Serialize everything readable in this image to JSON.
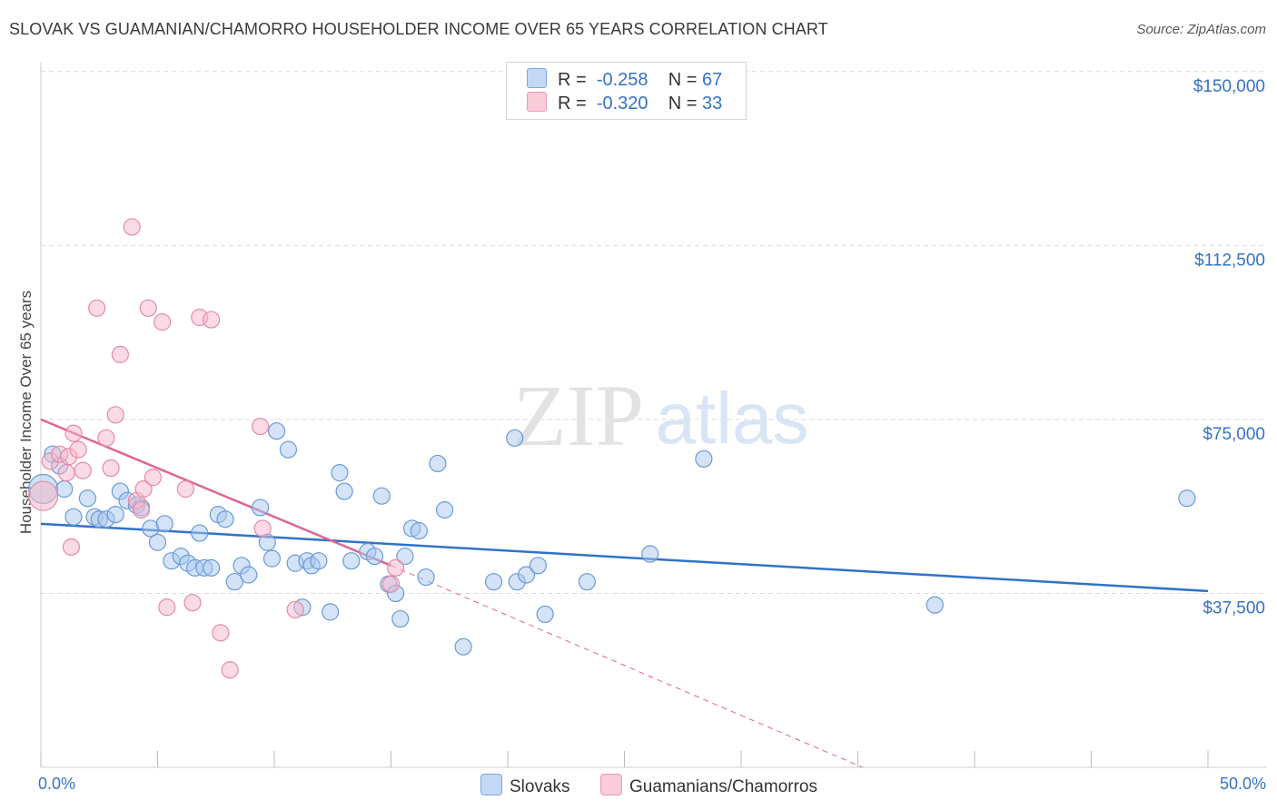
{
  "header": {
    "title": "SLOVAK VS GUAMANIAN/CHAMORRO HOUSEHOLDER INCOME OVER 65 YEARS CORRELATION CHART",
    "source": "Source: ZipAtlas.com"
  },
  "watermark": {
    "zip": "ZIP",
    "atlas": "atlas"
  },
  "legend": {
    "rows": [
      {
        "r_label": "R =",
        "r_value": "-0.258",
        "n_label": "N =",
        "n_value": "67"
      },
      {
        "r_label": "R =",
        "r_value": "-0.320",
        "n_label": "N =",
        "n_value": "33"
      }
    ]
  },
  "colors": {
    "slovak_fill": "#a9c8ef",
    "slovak_stroke": "#6a9ad6",
    "slovak_line": "#2f72c9",
    "guam_fill": "#f5b8cb",
    "guam_stroke": "#e48aa6",
    "guam_line": "#e0648e",
    "tick_label": "#3572c6",
    "grid": "#dcdcdc"
  },
  "chart_data": {
    "type": "scatter",
    "title": "SLOVAK VS GUAMANIAN/CHAMORRO HOUSEHOLDER INCOME OVER 65 YEARS CORRELATION CHART",
    "xlabel": "",
    "ylabel": "Householder Income Over 65 years",
    "xlim": [
      0,
      50
    ],
    "ylim": [
      0,
      157500
    ],
    "x_tick_labels": [
      "0.0%",
      "50.0%"
    ],
    "y_ticks": [
      37500,
      75000,
      112500,
      150000
    ],
    "y_tick_labels": [
      "$37,500",
      "$75,000",
      "$112,500",
      "$150,000"
    ],
    "grid": true,
    "legend_position": "top-center",
    "series": [
      {
        "name": "Slovaks",
        "r": -0.258,
        "n": 67,
        "trend": {
          "x": [
            0,
            50
          ],
          "y": [
            52500,
            38000
          ]
        },
        "points": [
          [
            0.1,
            60000
          ],
          [
            0.5,
            67500
          ],
          [
            0.8,
            65000
          ],
          [
            1.0,
            60000
          ],
          [
            1.4,
            54000
          ],
          [
            2.0,
            58000
          ],
          [
            2.3,
            54000
          ],
          [
            2.5,
            53500
          ],
          [
            2.8,
            53500
          ],
          [
            3.2,
            54500
          ],
          [
            3.4,
            59500
          ],
          [
            3.7,
            57500
          ],
          [
            4.1,
            56500
          ],
          [
            4.3,
            56000
          ],
          [
            4.7,
            51500
          ],
          [
            5.0,
            48500
          ],
          [
            5.3,
            52500
          ],
          [
            5.6,
            44500
          ],
          [
            6.0,
            45500
          ],
          [
            6.3,
            44000
          ],
          [
            6.6,
            43000
          ],
          [
            6.8,
            50500
          ],
          [
            7.0,
            43000
          ],
          [
            7.3,
            43000
          ],
          [
            7.6,
            54500
          ],
          [
            7.9,
            53500
          ],
          [
            8.3,
            40000
          ],
          [
            8.6,
            43500
          ],
          [
            8.9,
            41500
          ],
          [
            9.4,
            56000
          ],
          [
            9.7,
            48500
          ],
          [
            9.9,
            45000
          ],
          [
            10.1,
            72500
          ],
          [
            10.6,
            68500
          ],
          [
            10.9,
            44000
          ],
          [
            11.2,
            34500
          ],
          [
            11.4,
            44500
          ],
          [
            11.6,
            43500
          ],
          [
            11.9,
            44500
          ],
          [
            12.4,
            33500
          ],
          [
            12.8,
            63500
          ],
          [
            13.0,
            59500
          ],
          [
            13.3,
            44500
          ],
          [
            14.0,
            46500
          ],
          [
            14.3,
            45500
          ],
          [
            14.6,
            58500
          ],
          [
            14.9,
            39500
          ],
          [
            15.2,
            37500
          ],
          [
            15.4,
            32000
          ],
          [
            15.6,
            45500
          ],
          [
            15.9,
            51500
          ],
          [
            16.2,
            51000
          ],
          [
            16.5,
            41000
          ],
          [
            17.0,
            65500
          ],
          [
            17.3,
            55500
          ],
          [
            18.1,
            26000
          ],
          [
            19.4,
            40000
          ],
          [
            20.3,
            71000
          ],
          [
            20.4,
            40000
          ],
          [
            20.8,
            41500
          ],
          [
            21.3,
            43500
          ],
          [
            21.6,
            33000
          ],
          [
            23.4,
            40000
          ],
          [
            26.1,
            46000
          ],
          [
            28.4,
            66500
          ],
          [
            38.3,
            35000
          ],
          [
            49.1,
            58000
          ]
        ]
      },
      {
        "name": "Guamanians/Chamorros",
        "r": -0.32,
        "n": 33,
        "trend": {
          "x": [
            0,
            15
          ],
          "y": [
            75000,
            43500
          ]
        },
        "trend_extended": {
          "x": [
            15,
            35.2
          ],
          "y": [
            43500,
            0
          ]
        },
        "points": [
          [
            0.1,
            58500
          ],
          [
            0.4,
            66000
          ],
          [
            0.8,
            67500
          ],
          [
            1.1,
            63500
          ],
          [
            1.2,
            67000
          ],
          [
            1.3,
            47500
          ],
          [
            1.4,
            72000
          ],
          [
            1.6,
            68500
          ],
          [
            1.8,
            64000
          ],
          [
            2.4,
            99000
          ],
          [
            2.8,
            71000
          ],
          [
            3.0,
            64500
          ],
          [
            3.2,
            76000
          ],
          [
            3.4,
            89000
          ],
          [
            3.9,
            116500
          ],
          [
            4.1,
            57500
          ],
          [
            4.3,
            55500
          ],
          [
            4.4,
            60000
          ],
          [
            4.6,
            99000
          ],
          [
            4.8,
            62500
          ],
          [
            5.2,
            96000
          ],
          [
            5.4,
            34500
          ],
          [
            6.2,
            60000
          ],
          [
            6.5,
            35500
          ],
          [
            6.8,
            97000
          ],
          [
            7.3,
            96500
          ],
          [
            7.7,
            29000
          ],
          [
            8.1,
            21000
          ],
          [
            9.4,
            73500
          ],
          [
            9.5,
            51500
          ],
          [
            10.9,
            34000
          ],
          [
            15.0,
            39500
          ],
          [
            15.2,
            43000
          ]
        ]
      }
    ]
  }
}
